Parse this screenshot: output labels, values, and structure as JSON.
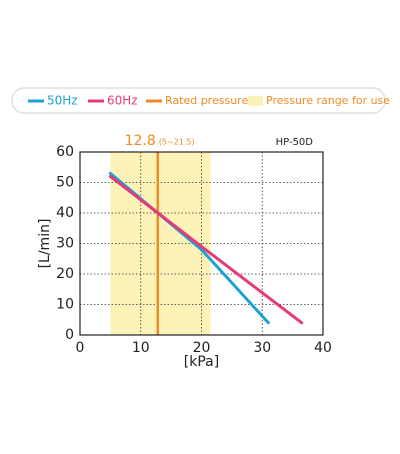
{
  "chart_data": {
    "type": "line",
    "subtitle": "HP-50D",
    "xlabel": "[kPa]",
    "ylabel": "[L/min]",
    "xlim": [
      0,
      40
    ],
    "xticks": [
      0,
      10,
      20,
      30,
      40
    ],
    "ylim": [
      0,
      60
    ],
    "yticks": [
      0,
      10,
      20,
      30,
      40,
      50,
      60
    ],
    "grid": true,
    "series": [
      {
        "name": "50Hz",
        "color": "#1ba1d8",
        "x": [
          5,
          12.8,
          20,
          31
        ],
        "values": [
          53,
          40,
          28,
          4
        ]
      },
      {
        "name": "60Hz",
        "color": "#e6397a",
        "x": [
          5,
          20,
          36.5
        ],
        "values": [
          52,
          29,
          4
        ]
      }
    ],
    "rated_pressure_name": "Rated pressure",
    "rated_pressure": 12.8,
    "rated_pressure_color": "#f08a24",
    "pressure_range_name": "Pressure range for use",
    "pressure_range": [
      5,
      21.5
    ],
    "pressure_range_label": "(5~21.5)",
    "pressure_range_color": "#fdf3b8"
  }
}
